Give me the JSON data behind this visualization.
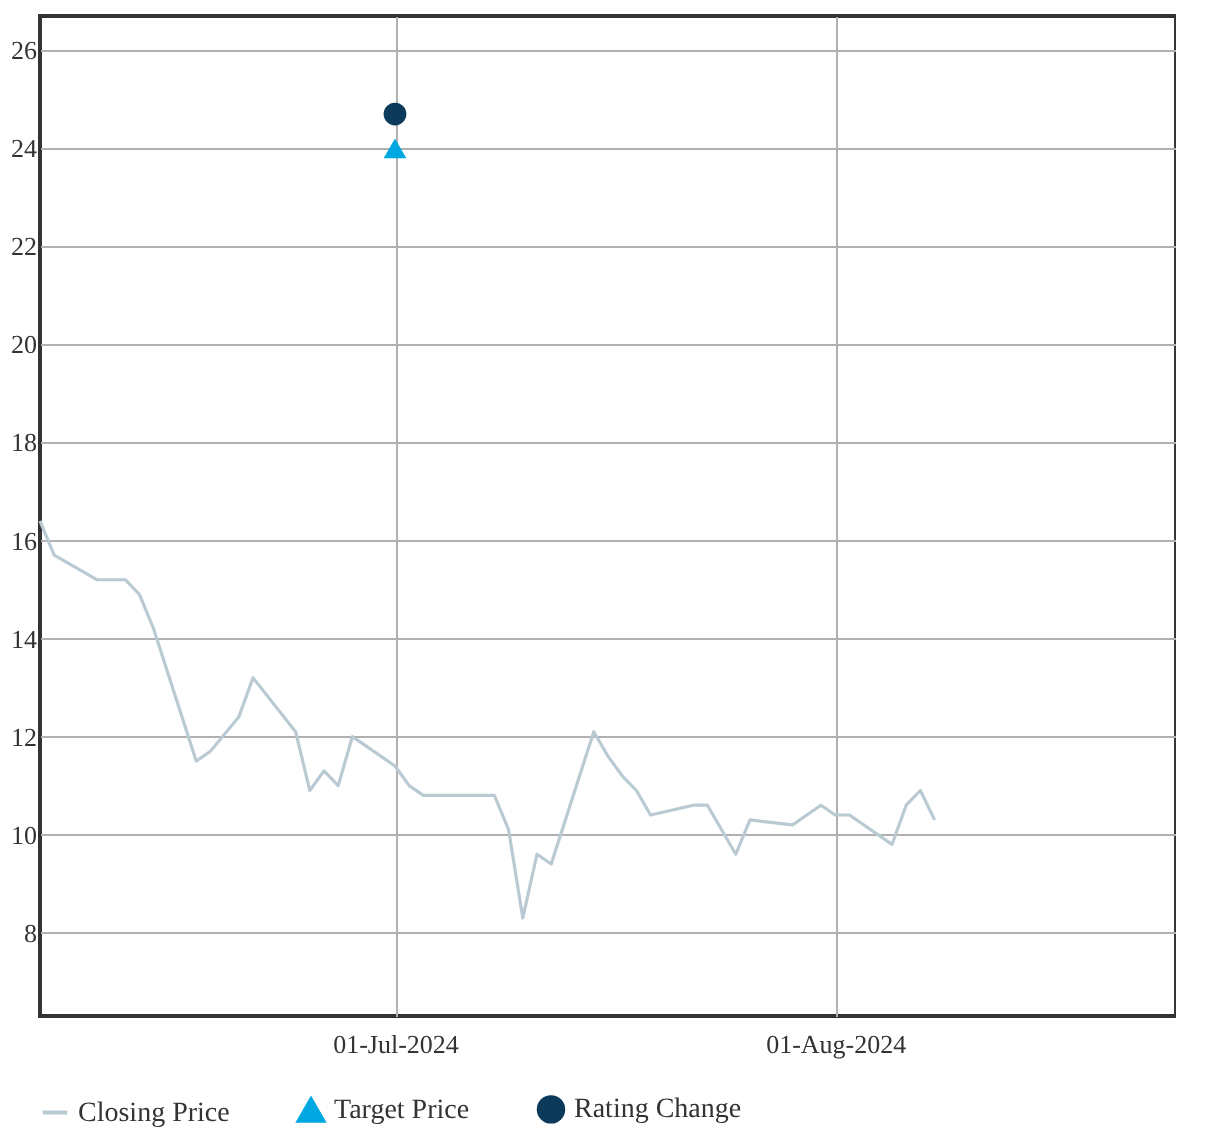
{
  "chart_data": {
    "type": "line",
    "xlim": [
      "2024-06-06",
      "2024-08-25"
    ],
    "xticks": [
      {
        "value": "2024-07-01",
        "label": "01-Jul-2024"
      },
      {
        "value": "2024-08-01",
        "label": "01-Aug-2024"
      }
    ],
    "ylim": [
      6.3,
      26.7
    ],
    "yticks": [
      8,
      10,
      12,
      14,
      16,
      18,
      20,
      22,
      24,
      26
    ],
    "grid": true,
    "legend": "bottom",
    "series": [
      {
        "name": "Closing Price",
        "color": "#b9cad3",
        "marker": "none",
        "line_style": "solid",
        "x": [
          "2024-06-06",
          "2024-06-07",
          "2024-06-10",
          "2024-06-11",
          "2024-06-12",
          "2024-06-13",
          "2024-06-14",
          "2024-06-17",
          "2024-06-18",
          "2024-06-20",
          "2024-06-21",
          "2024-06-24",
          "2024-06-25",
          "2024-06-26",
          "2024-06-27",
          "2024-06-28",
          "2024-07-01",
          "2024-07-02",
          "2024-07-03",
          "2024-07-05",
          "2024-07-08",
          "2024-07-09",
          "2024-07-10",
          "2024-07-11",
          "2024-07-12",
          "2024-07-15",
          "2024-07-16",
          "2024-07-17",
          "2024-07-18",
          "2024-07-19",
          "2024-07-22",
          "2024-07-23",
          "2024-07-25",
          "2024-07-26",
          "2024-07-29",
          "2024-07-30",
          "2024-07-31",
          "2024-08-01",
          "2024-08-02",
          "2024-08-05",
          "2024-08-06",
          "2024-08-07",
          "2024-08-08"
        ],
        "values": [
          16.4,
          15.7,
          15.2,
          15.2,
          15.2,
          14.9,
          14.2,
          11.5,
          11.7,
          12.4,
          13.2,
          12.1,
          10.9,
          11.3,
          11.0,
          12.0,
          11.4,
          11.0,
          10.8,
          10.8,
          10.8,
          10.1,
          8.3,
          9.6,
          9.4,
          12.1,
          11.6,
          11.2,
          10.9,
          10.4,
          10.6,
          10.6,
          9.6,
          10.3,
          10.2,
          10.4,
          10.6,
          10.4,
          10.4,
          9.8,
          10.6,
          10.9,
          10.3
        ]
      },
      {
        "name": "Target Price",
        "type": "scatter",
        "color": "#00a8e1",
        "marker": "triangle",
        "x": [
          "2024-07-01"
        ],
        "values": [
          24.0
        ]
      },
      {
        "name": "Rating Change",
        "type": "scatter",
        "color": "#0b3a5b",
        "marker": "circle",
        "x": [
          "2024-07-01"
        ],
        "values": [
          24.7
        ]
      }
    ]
  }
}
